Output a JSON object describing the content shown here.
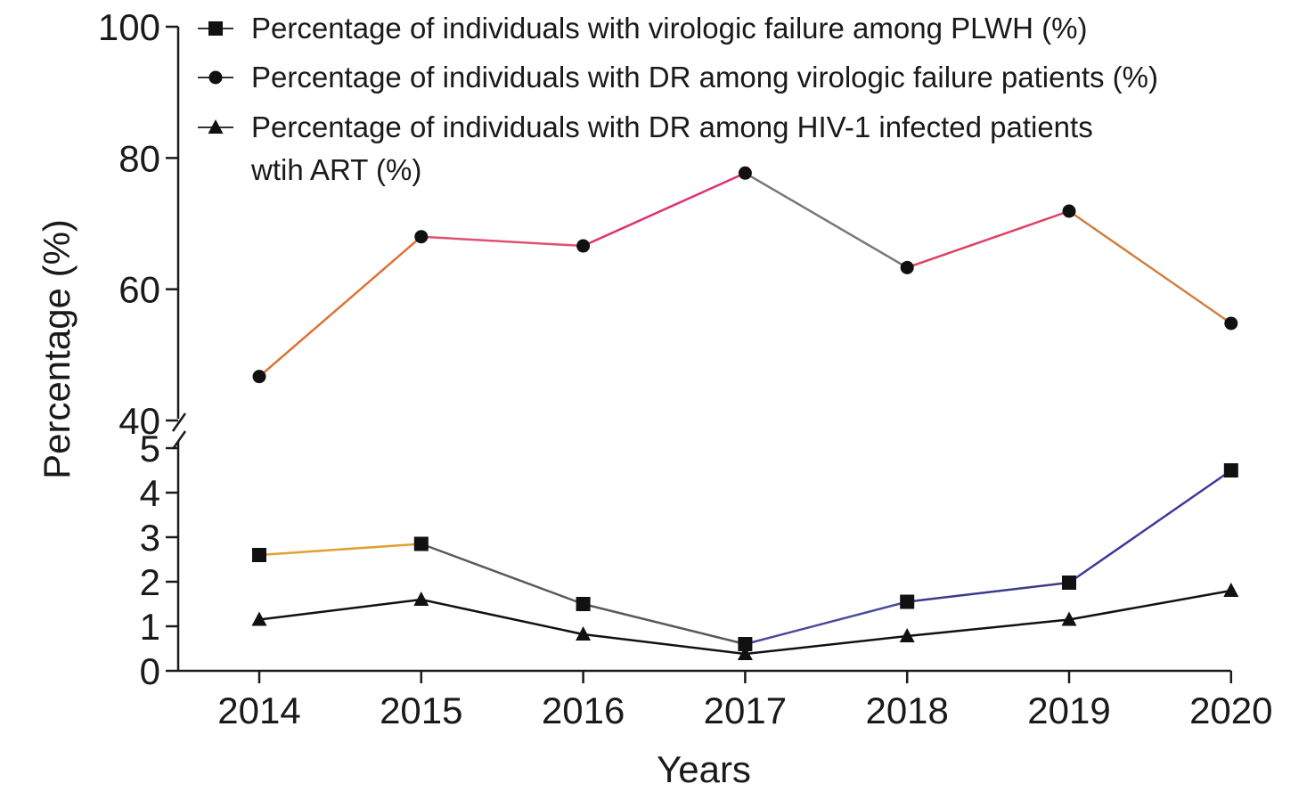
{
  "chart_data": {
    "type": "line",
    "xlabel": "Years",
    "ylabel": "Percentage (%)",
    "categories": [
      "2014",
      "2015",
      "2016",
      "2017",
      "2018",
      "2019",
      "2020"
    ],
    "y_axis_break": {
      "upper_range": [
        40,
        100
      ],
      "upper_ticks": [
        "40",
        "60",
        "80",
        "100"
      ],
      "lower_range": [
        0,
        5
      ],
      "lower_ticks": [
        "0",
        "1",
        "2",
        "3",
        "4",
        "5"
      ]
    },
    "series": [
      {
        "name": "Percentage of individuals with virologic failure among PLWH (%)",
        "marker": "square",
        "segment": "lower",
        "values": [
          2.6,
          2.85,
          1.5,
          0.6,
          1.55,
          1.98,
          4.5
        ],
        "segment_colors": [
          "#e0a030",
          "#5a5a5a",
          "#5a5a5a",
          "#4a4a9a",
          "#3a3a8a",
          "#3a3a9a"
        ]
      },
      {
        "name": "Percentage of individuals with DR among virologic failure patients (%)",
        "marker": "circle",
        "segment": "upper",
        "values": [
          46.7,
          68.0,
          66.6,
          77.7,
          63.3,
          71.9,
          54.8
        ],
        "segment_colors": [
          "#e07030",
          "#e05070",
          "#e03070",
          "#777777",
          "#e04060",
          "#d08040"
        ]
      },
      {
        "name": "Percentage of individuals with DR among HIV-1 infected patients wtih ART (%)",
        "legend_lines": [
          "Percentage of individuals with DR among HIV-1 infected patients",
          "wtih ART (%)"
        ],
        "marker": "triangle",
        "segment": "lower",
        "values": [
          1.15,
          1.6,
          0.82,
          0.38,
          0.78,
          1.15,
          1.8
        ],
        "segment_colors": [
          "#111111",
          "#111111",
          "#111111",
          "#111111",
          "#111111",
          "#111111"
        ]
      }
    ],
    "legend_position": "top-center",
    "grid": false
  }
}
